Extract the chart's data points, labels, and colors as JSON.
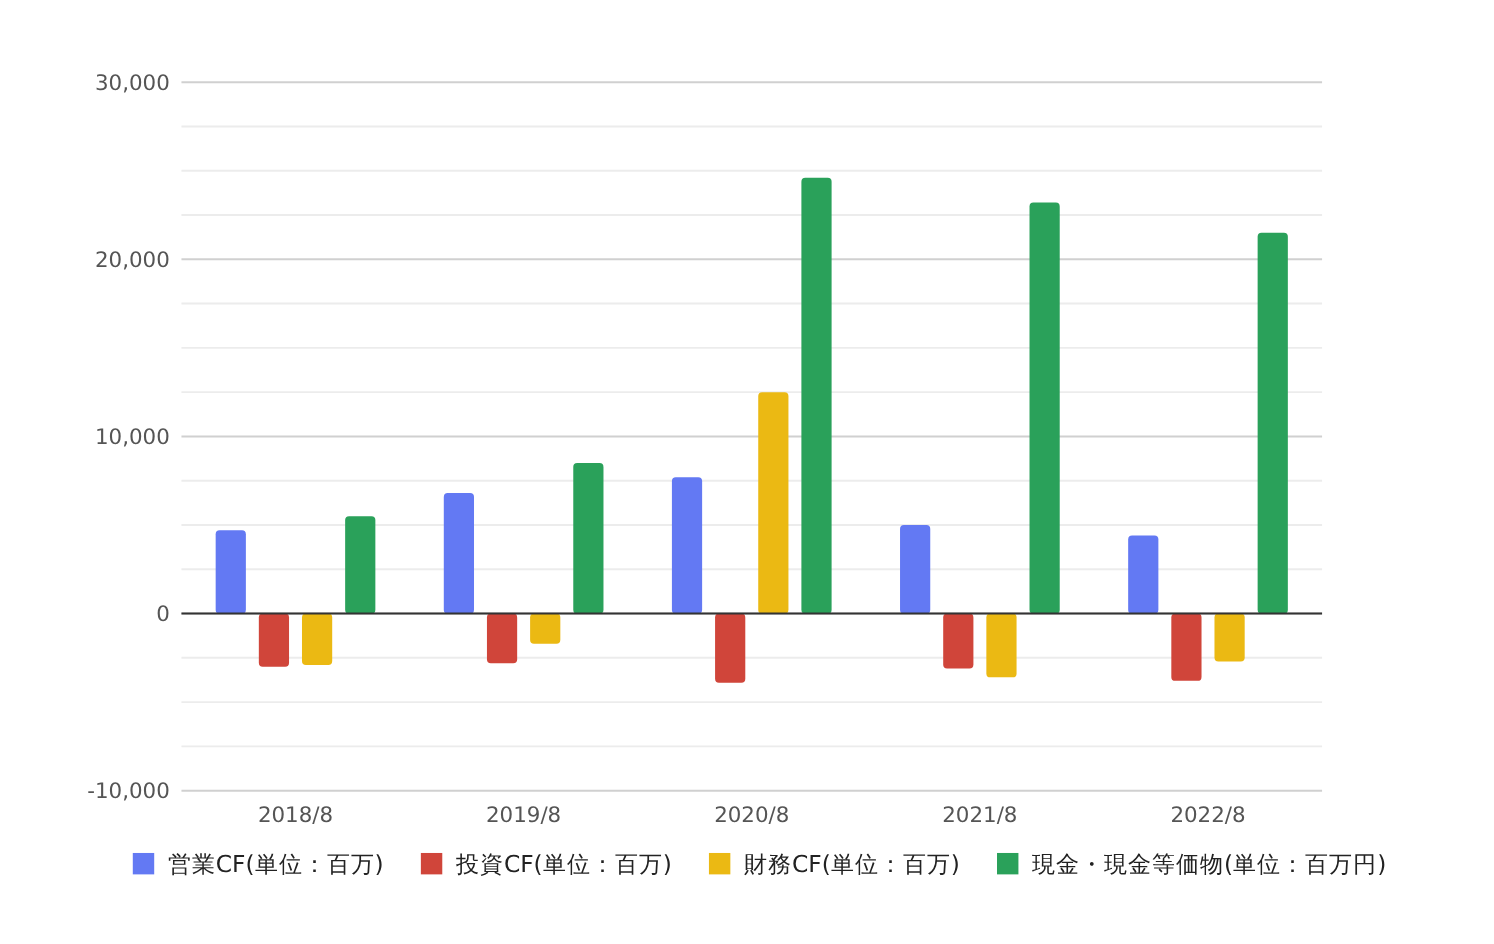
{
  "chart_data": {
    "type": "bar",
    "categories": [
      "2018/8",
      "2019/8",
      "2020/8",
      "2021/8",
      "2022/8"
    ],
    "series": [
      {
        "name": "営業CF(単位：百万)",
        "color": "#6379f3",
        "values": [
          4700,
          6800,
          7700,
          5000,
          4400
        ]
      },
      {
        "name": "投資CF(単位：百万)",
        "color": "#d0453a",
        "values": [
          -3000,
          -2800,
          -3900,
          -3100,
          -3800
        ]
      },
      {
        "name": "財務CF(単位：百万)",
        "color": "#ebb913",
        "values": [
          -2900,
          -1700,
          12500,
          -3600,
          -2700
        ]
      },
      {
        "name": "現金・現金等価物(単位：百万円)",
        "color": "#2aa15a",
        "values": [
          5500,
          8500,
          24600,
          23200,
          21500
        ]
      }
    ],
    "ylim": [
      -10000,
      30000
    ],
    "yticks": [
      {
        "value": -10000,
        "label": "-10,000"
      },
      {
        "value": -7500,
        "label": null
      },
      {
        "value": -5000,
        "label": null
      },
      {
        "value": -2500,
        "label": null
      },
      0,
      {
        "value": 2500,
        "label": null
      },
      {
        "value": 5000,
        "label": null
      },
      {
        "value": 7500,
        "label": null
      },
      {
        "value": 10000,
        "label": "10,000"
      },
      {
        "value": 12500,
        "label": null
      },
      {
        "value": 15000,
        "label": null
      },
      {
        "value": 17500,
        "label": null
      },
      {
        "value": 20000,
        "label": "20,000"
      },
      {
        "value": 22500,
        "label": null
      },
      {
        "value": 25000,
        "label": null
      },
      {
        "value": 27500,
        "label": null
      },
      {
        "value": 30000,
        "label": "30,000"
      }
    ],
    "grid": true,
    "legend": "bottom"
  }
}
